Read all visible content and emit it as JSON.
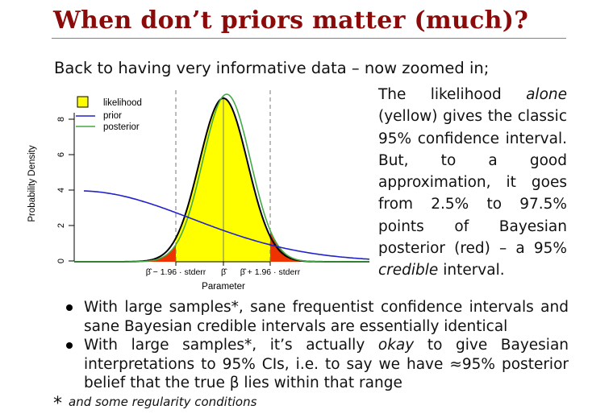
{
  "slide": {
    "title": "When don’t priors matter (much)?",
    "intro": "Back to having very informative data – now zoomed in;",
    "side_text": {
      "p1": "The likelihood",
      "p1_em": "alone",
      "p2": "(yellow) gives the classic 95% confidence interval. But, to a good approximation, it goes from 2.5% to 97.5% points of Bayesian posterior (red) – a 95%",
      "p2_em": "credible",
      "p3": "interval."
    },
    "bullets": [
      {
        "text": "With large samples*, sane frequentist confidence intervals and sane Bayesian credible intervals are essentially identical"
      },
      {
        "pre": "With large samples*, it’s actually",
        "em": "okay",
        "post": "to give Bayesian interpretations to 95% CIs, i.e. to say we have ≈95% posterior belief that the true β lies within that range"
      }
    ],
    "footnote_star": "*",
    "footnote": "and some regularity conditions"
  },
  "plot": {
    "ylabel": "Probability Density",
    "xlabel": "Parameter",
    "yticks": [
      "0",
      "2",
      "4",
      "6",
      "8"
    ],
    "xtick_left": "β̂ − 1.96 · stderr",
    "xtick_mid": "β̂",
    "xtick_right": "β̂ + 1.96 · stderr",
    "legend": [
      {
        "label": "likelihood",
        "color": "#ffff00"
      },
      {
        "label": "prior",
        "color": "#2222cc"
      },
      {
        "label": "posterior",
        "color": "#44aa44"
      }
    ],
    "colors": {
      "tail": "#ee3300",
      "fill": "#ffff00",
      "posterior": "#44aa44",
      "prior": "#2222cc"
    }
  }
}
